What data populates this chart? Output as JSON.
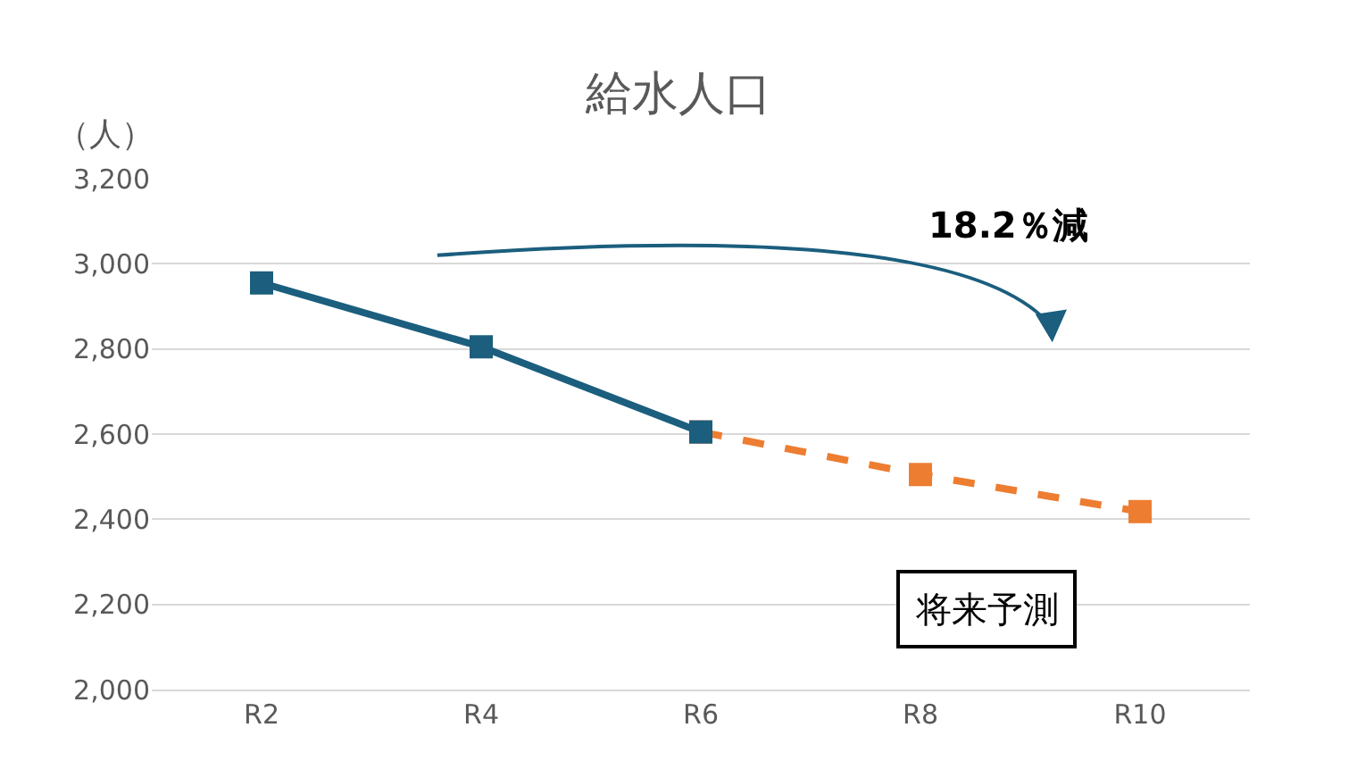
{
  "chart_data": {
    "type": "line",
    "title": "給水人口",
    "ylabel": "（人）",
    "categories": [
      "R2",
      "R4",
      "R6",
      "R8",
      "R10"
    ],
    "series": [
      {
        "color": "#ed7d31",
        "values": [
          null,
          null,
          2605,
          2505,
          2418
        ],
        "line_style": "dashed"
      },
      {
        "color": "#1b5e7e",
        "values": [
          2955,
          2805,
          2605,
          null,
          null
        ],
        "line_style": "solid"
      }
    ],
    "ylim": [
      2000,
      3200
    ],
    "yticks": [
      {
        "value": 2000,
        "label": "2,000"
      },
      {
        "value": 2200,
        "label": "2,200"
      },
      {
        "value": 2400,
        "label": "2,400"
      },
      {
        "value": 2600,
        "label": "2,600"
      },
      {
        "value": 2800,
        "label": "2,800"
      },
      {
        "value": 3000,
        "label": "3,000"
      },
      {
        "value": 3200,
        "label": "3,200"
      }
    ],
    "grid": "y",
    "legend": false,
    "marker": "square",
    "annotations": [
      "18.2％減",
      "将来予測"
    ]
  }
}
